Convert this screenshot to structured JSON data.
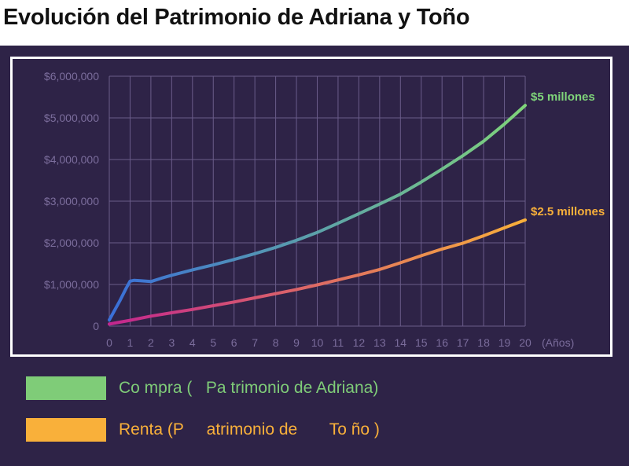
{
  "title": "Evolución del Patrimonio de Adriana y Toño",
  "colors": {
    "panel_bg": "#2e2347",
    "grid": "#6a5c8a",
    "axis_text": "#7b6d9c",
    "compra_start": "#3a6fd8",
    "compra_end": "#7fd47a",
    "renta_start": "#c2268f",
    "renta_end": "#f9b03a",
    "legend_compra": "#7fcc78",
    "legend_renta": "#f9b03a"
  },
  "chart_data": {
    "type": "line",
    "xlabel": "(Años)",
    "ylabel": "",
    "xlim": [
      0,
      20
    ],
    "ylim": [
      0,
      6000000
    ],
    "x_ticks": [
      "0",
      "1",
      "2",
      "3",
      "4",
      "5",
      "6",
      "7",
      "8",
      "9",
      "10",
      "11",
      "12",
      "13",
      "14",
      "15",
      "16",
      "17",
      "18",
      "19",
      "20"
    ],
    "y_ticks": [
      "0",
      "$1,000,000",
      "$2,000,000",
      "$3,000,000",
      "$4,000,000",
      "$5,000,000",
      "$6,000,000"
    ],
    "grid": true,
    "series": [
      {
        "name": "Co mpra (   Pa trimonio de Adriana)",
        "end_label": "$5 millones",
        "x": [
          0,
          0.5,
          0.8,
          1,
          1.2,
          1.5,
          2,
          2.5,
          3,
          4,
          5,
          6,
          7,
          8,
          9,
          10,
          11,
          12,
          13,
          14,
          15,
          16,
          17,
          18,
          19,
          20
        ],
        "y": [
          150000,
          600000,
          900000,
          1080000,
          1100000,
          1090000,
          1070000,
          1150000,
          1220000,
          1350000,
          1470000,
          1600000,
          1740000,
          1890000,
          2060000,
          2250000,
          2470000,
          2700000,
          2930000,
          3170000,
          3460000,
          3770000,
          4090000,
          4440000,
          4850000,
          5300000
        ]
      },
      {
        "name": "Renta (P     atrimonio de       To ño )",
        "end_label": "$2.5 millones",
        "x": [
          0,
          1,
          2,
          3,
          4,
          5,
          6,
          7,
          8,
          9,
          10,
          11,
          12,
          13,
          14,
          15,
          16,
          17,
          18,
          19,
          20
        ],
        "y": [
          50000,
          140000,
          240000,
          320000,
          400000,
          490000,
          580000,
          680000,
          780000,
          880000,
          990000,
          1110000,
          1230000,
          1360000,
          1520000,
          1690000,
          1850000,
          1990000,
          2170000,
          2360000,
          2550000
        ]
      }
    ]
  }
}
